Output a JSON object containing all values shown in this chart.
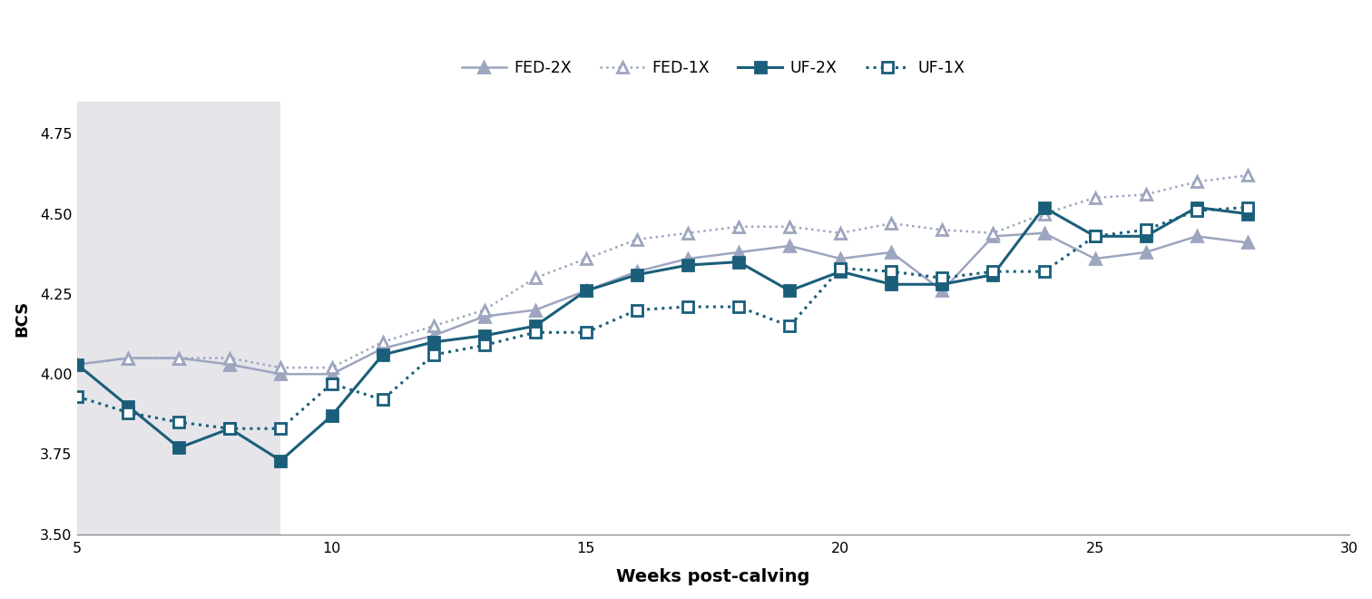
{
  "title": "",
  "xlabel": "Weeks post-calving",
  "ylabel": "BCS",
  "xlim": [
    5,
    30
  ],
  "ylim": [
    3.5,
    4.85
  ],
  "yticks": [
    3.5,
    3.75,
    4.0,
    4.25,
    4.5,
    4.75
  ],
  "xticks": [
    5,
    10,
    15,
    20,
    25,
    30
  ],
  "shaded_region": [
    5,
    9
  ],
  "background_color": "#ffffff",
  "shaded_color": "#e5e5ea",
  "FED_2X": {
    "label": "FED-2X",
    "color": "#9da5bf",
    "linestyle": "solid",
    "marker": "^",
    "marker_filled": true,
    "linewidth": 1.8,
    "markersize": 8,
    "x": [
      5,
      6,
      7,
      8,
      9,
      10,
      11,
      12,
      13,
      14,
      15,
      16,
      17,
      18,
      19,
      20,
      21,
      22,
      23,
      24,
      25,
      26,
      27,
      28
    ],
    "y": [
      4.03,
      4.05,
      4.05,
      4.03,
      4.0,
      4.0,
      4.08,
      4.12,
      4.18,
      4.2,
      4.26,
      4.32,
      4.36,
      4.38,
      4.4,
      4.36,
      4.38,
      4.26,
      4.43,
      4.44,
      4.36,
      4.38,
      4.43,
      4.41
    ]
  },
  "FED_1X": {
    "label": "FED-1X",
    "color": "#9da5bf",
    "linestyle": "dotted",
    "marker": "^",
    "marker_filled": false,
    "linewidth": 1.8,
    "markersize": 8,
    "x": [
      5,
      6,
      7,
      8,
      9,
      10,
      11,
      12,
      13,
      14,
      15,
      16,
      17,
      18,
      19,
      20,
      21,
      22,
      23,
      24,
      25,
      26,
      27,
      28
    ],
    "y": [
      4.03,
      4.05,
      4.05,
      4.05,
      4.02,
      4.02,
      4.1,
      4.15,
      4.2,
      4.3,
      4.36,
      4.42,
      4.44,
      4.46,
      4.46,
      4.44,
      4.47,
      4.45,
      4.44,
      4.5,
      4.55,
      4.56,
      4.6,
      4.62
    ]
  },
  "UF_2X": {
    "label": "UF-2X",
    "color": "#1a5e7a",
    "linestyle": "solid",
    "marker": "s",
    "marker_filled": true,
    "linewidth": 2.2,
    "markersize": 9,
    "x": [
      5,
      6,
      7,
      8,
      9,
      10,
      11,
      12,
      13,
      14,
      15,
      16,
      17,
      18,
      19,
      20,
      21,
      22,
      23,
      24,
      25,
      26,
      27,
      28
    ],
    "y": [
      4.03,
      3.9,
      3.77,
      3.83,
      3.73,
      3.87,
      4.06,
      4.1,
      4.12,
      4.15,
      4.26,
      4.31,
      4.34,
      4.35,
      4.26,
      4.32,
      4.28,
      4.28,
      4.31,
      4.52,
      4.43,
      4.43,
      4.52,
      4.5
    ]
  },
  "UF_1X": {
    "label": "UF-1X",
    "color": "#1a5e7a",
    "linestyle": "dotted",
    "marker": "s",
    "marker_filled": false,
    "linewidth": 2.2,
    "markersize": 9,
    "x": [
      5,
      6,
      7,
      8,
      9,
      10,
      11,
      12,
      13,
      14,
      15,
      16,
      17,
      18,
      19,
      20,
      21,
      22,
      23,
      24,
      25,
      26,
      27,
      28
    ],
    "y": [
      3.93,
      3.88,
      3.85,
      3.83,
      3.83,
      3.97,
      3.92,
      4.06,
      4.09,
      4.13,
      4.13,
      4.2,
      4.21,
      4.21,
      4.15,
      4.33,
      4.32,
      4.3,
      4.32,
      4.32,
      4.43,
      4.45,
      4.51,
      4.52
    ]
  }
}
